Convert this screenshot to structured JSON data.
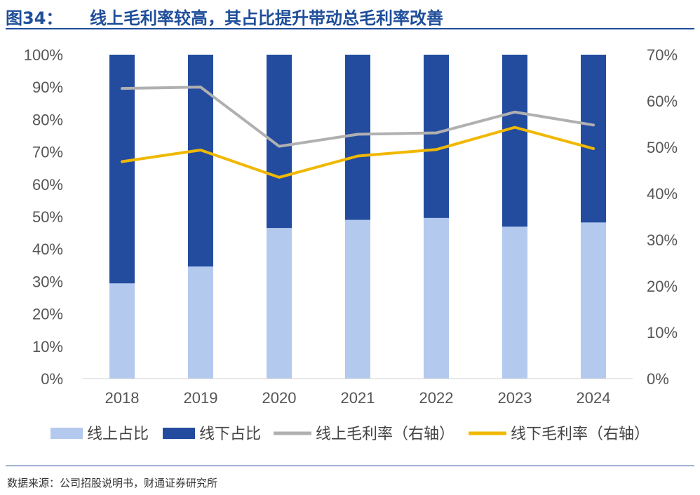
{
  "header": {
    "figure_label": "图34：",
    "title": "线上毛利率较高，其占比提升带动总毛利率改善"
  },
  "source": "数据来源：公司招股说明书，财通证券研究所",
  "colors": {
    "online_share": "#b4c9ee",
    "offline_share": "#234c9f",
    "online_margin": "#b0b0b0",
    "offline_margin": "#f0b800",
    "title": "#1f4e9a"
  },
  "chart_data": {
    "type": "bar",
    "stacked": true,
    "categories": [
      "2018",
      "2019",
      "2020",
      "2021",
      "2022",
      "2023",
      "2024"
    ],
    "left_axis": {
      "ylim": [
        0,
        100
      ],
      "ticks": [
        "0%",
        "10%",
        "20%",
        "30%",
        "40%",
        "50%",
        "60%",
        "70%",
        "80%",
        "90%",
        "100%"
      ]
    },
    "right_axis": {
      "ylim": [
        0,
        70
      ],
      "ticks": [
        "0%",
        "10%",
        "20%",
        "30%",
        "40%",
        "50%",
        "60%",
        "70%"
      ]
    },
    "series": [
      {
        "name": "线上占比",
        "kind": "bar",
        "axis": "left",
        "values": [
          29.4,
          34.6,
          46.5,
          49.0,
          49.6,
          46.9,
          48.2
        ]
      },
      {
        "name": "线下占比",
        "kind": "bar",
        "axis": "left",
        "values": [
          70.6,
          65.4,
          53.5,
          51.0,
          50.4,
          53.1,
          51.8
        ]
      },
      {
        "name": "线上毛利率（右轴）",
        "kind": "line",
        "axis": "right",
        "values": [
          62.7,
          63.0,
          50.2,
          52.8,
          53.1,
          57.6,
          54.8
        ]
      },
      {
        "name": "线下毛利率（右轴）",
        "kind": "line",
        "axis": "right",
        "values": [
          46.9,
          49.4,
          43.5,
          48.1,
          49.5,
          54.3,
          49.7
        ]
      }
    ],
    "legend_position": "bottom",
    "grid": false
  }
}
